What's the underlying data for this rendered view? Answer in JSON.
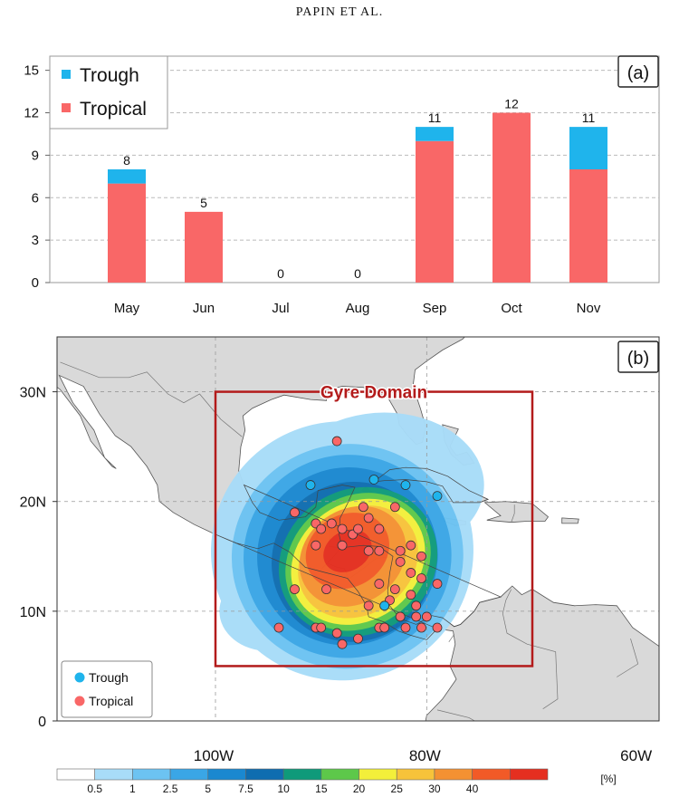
{
  "header": {
    "running_title": "PAPIN ET AL."
  },
  "panel_a": {
    "panel_label": "(a)",
    "legend": [
      {
        "label": "Trough",
        "color": "#1fb4ec"
      },
      {
        "label": "Tropical",
        "color": "#f96767"
      }
    ]
  },
  "panel_b": {
    "panel_label": "(b)",
    "domain_label": "Gyre Domain",
    "domain_box_color": "#b31b1b",
    "lat_labels": [
      "30N",
      "20N",
      "10N",
      "0"
    ],
    "lon_labels": [
      "100W",
      "80W",
      "60W"
    ],
    "legend": [
      {
        "label": "Trough",
        "color": "#1fb4ec"
      },
      {
        "label": "Tropical",
        "color": "#f96767"
      }
    ],
    "colorbar": {
      "unit": "[%]",
      "tick_labels": [
        "0.5",
        "1",
        "2.5",
        "5",
        "7.5",
        "10",
        "15",
        "20",
        "25",
        "30",
        "40"
      ],
      "colors": [
        "#ffffff",
        "#a8dcf8",
        "#6cc3f2",
        "#3aa6e6",
        "#1a88d0",
        "#0f6db0",
        "#0f9a7a",
        "#5dc84a",
        "#f3ef3a",
        "#f7c33a",
        "#f49132",
        "#f25a27",
        "#e52f20"
      ]
    }
  },
  "chart_data": [
    {
      "type": "bar",
      "stacked": true,
      "categories": [
        "May",
        "Jun",
        "Jul",
        "Aug",
        "Sep",
        "Oct",
        "Nov"
      ],
      "series": [
        {
          "name": "Tropical",
          "values": [
            7,
            5,
            0,
            0,
            10,
            12,
            8
          ],
          "color": "#f96767"
        },
        {
          "name": "Trough",
          "values": [
            1,
            0,
            0,
            0,
            1,
            0,
            3
          ],
          "color": "#1fb4ec"
        }
      ],
      "totals": [
        8,
        5,
        0,
        0,
        11,
        12,
        11
      ],
      "ylim": [
        0,
        16
      ],
      "yticks": [
        0,
        3,
        6,
        9,
        12,
        15
      ],
      "grid": true,
      "legend_position": "top-left"
    },
    {
      "type": "scatter",
      "xlim": [
        -115,
        -58
      ],
      "ylim": [
        0,
        35
      ],
      "domain_box": {
        "lon": [
          -100,
          -70
        ],
        "lat": [
          5,
          30
        ]
      },
      "series": [
        {
          "name": "Trough",
          "color": "#1fb4ec",
          "points": [
            [
              -91,
              21.5
            ],
            [
              -85,
              22
            ],
            [
              -82,
              21.5
            ],
            [
              -79,
              20.5
            ],
            [
              -84,
              10.5
            ]
          ]
        },
        {
          "name": "Tropical",
          "color": "#f96767",
          "points": [
            [
              -88.5,
              25.5
            ],
            [
              -92.5,
              19
            ],
            [
              -90.5,
              18
            ],
            [
              -90,
              17.5
            ],
            [
              -89,
              18
            ],
            [
              -88,
              17.5
            ],
            [
              -87,
              17
            ],
            [
              -86.5,
              17.5
            ],
            [
              -85.5,
              18.5
            ],
            [
              -84.5,
              15.5
            ],
            [
              -85.5,
              15.5
            ],
            [
              -90.5,
              16
            ],
            [
              -88,
              16
            ],
            [
              -86,
              19.5
            ],
            [
              -83,
              19.5
            ],
            [
              -84.5,
              17.5
            ],
            [
              -82.5,
              15.5
            ],
            [
              -81.5,
              16
            ],
            [
              -80.5,
              15
            ],
            [
              -82.5,
              14.5
            ],
            [
              -81.5,
              13.5
            ],
            [
              -84.5,
              12.5
            ],
            [
              -83,
              12
            ],
            [
              -80.5,
              13
            ],
            [
              -79,
              12.5
            ],
            [
              -81.5,
              11.5
            ],
            [
              -83.5,
              11
            ],
            [
              -81,
              10.5
            ],
            [
              -82.5,
              9.5
            ],
            [
              -81,
              9.5
            ],
            [
              -80,
              9.5
            ],
            [
              -89.5,
              12
            ],
            [
              -92.5,
              12
            ],
            [
              -85.5,
              10.5
            ],
            [
              -94,
              8.5
            ],
            [
              -90.5,
              8.5
            ],
            [
              -90,
              8.5
            ],
            [
              -88.5,
              8
            ],
            [
              -86.5,
              7.5
            ],
            [
              -88,
              7
            ],
            [
              -84.5,
              8.5
            ],
            [
              -84,
              8.5
            ],
            [
              -82,
              8.5
            ],
            [
              -80.5,
              8.5
            ],
            [
              -79,
              8.5
            ]
          ]
        }
      ],
      "colorbar_unit": "[%]",
      "colorbar_levels": [
        0.5,
        1,
        2.5,
        5,
        7.5,
        10,
        15,
        20,
        25,
        30,
        40
      ]
    }
  ]
}
